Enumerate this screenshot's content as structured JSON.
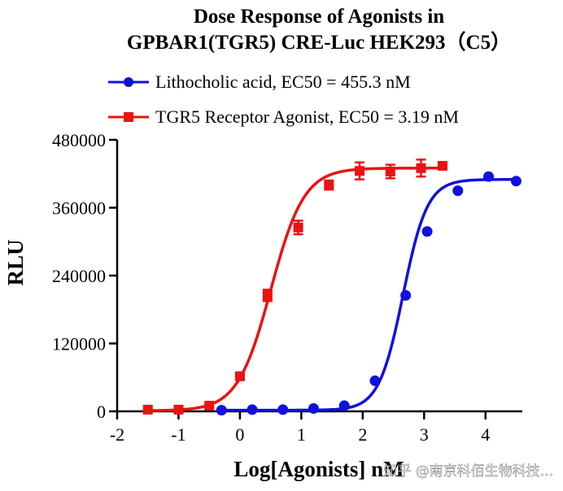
{
  "chart_data": {
    "type": "line",
    "title": "Dose Response of Agonists in",
    "subtitle": "GPBAR1(TGR5) CRE-Luc HEK293（C5）",
    "xlabel": "Log[Agonists] nM",
    "ylabel": "RLU",
    "xlim": [
      -2,
      4.6
    ],
    "ylim": [
      0,
      480000
    ],
    "xticks": [
      -2,
      -1,
      0,
      1,
      2,
      3,
      4
    ],
    "yticks": [
      0,
      120000,
      240000,
      360000,
      480000
    ],
    "grid": false,
    "legend_position": "top",
    "watermark": "知乎 @南京科佰生物科技...",
    "series": [
      {
        "name": "Lithocholic acid, EC50 = 455.3 nM",
        "color": "#1010e0",
        "marker": "circle",
        "fit": {
          "bottom": 2000,
          "top": 410000,
          "log_ec50": 2.658,
          "hill": 2.2
        },
        "points": [
          {
            "x": -0.3,
            "y": 2000,
            "err": 0
          },
          {
            "x": 0.2,
            "y": 3000,
            "err": 0
          },
          {
            "x": 0.7,
            "y": 3000,
            "err": 0
          },
          {
            "x": 1.2,
            "y": 5000,
            "err": 0
          },
          {
            "x": 1.7,
            "y": 10000,
            "err": 0
          },
          {
            "x": 2.2,
            "y": 54000,
            "err": 0
          },
          {
            "x": 2.7,
            "y": 205000,
            "err": 0
          },
          {
            "x": 3.05,
            "y": 318000,
            "err": 0
          },
          {
            "x": 3.55,
            "y": 390000,
            "err": 0
          },
          {
            "x": 4.05,
            "y": 415000,
            "err": 0
          },
          {
            "x": 4.5,
            "y": 407000,
            "err": 0
          }
        ]
      },
      {
        "name": "TGR5 Receptor Agonist, EC50 = 3.19 nM",
        "color": "#ee1111",
        "marker": "square",
        "fit": {
          "bottom": 1000,
          "top": 430000,
          "log_ec50": 0.504,
          "hill": 1.6
        },
        "points": [
          {
            "x": -1.5,
            "y": 3000,
            "err": 0
          },
          {
            "x": -1.0,
            "y": 3000,
            "err": 0
          },
          {
            "x": -0.5,
            "y": 10000,
            "err": 0
          },
          {
            "x": 0.0,
            "y": 62000,
            "err": 3000
          },
          {
            "x": 0.45,
            "y": 205000,
            "err": 10000
          },
          {
            "x": 0.95,
            "y": 325000,
            "err": 12000
          },
          {
            "x": 1.45,
            "y": 400000,
            "err": 8000
          },
          {
            "x": 1.95,
            "y": 425000,
            "err": 15000
          },
          {
            "x": 2.45,
            "y": 424000,
            "err": 12000
          },
          {
            "x": 2.95,
            "y": 430000,
            "err": 15000
          },
          {
            "x": 3.3,
            "y": 434000,
            "err": 5000
          }
        ]
      }
    ]
  }
}
